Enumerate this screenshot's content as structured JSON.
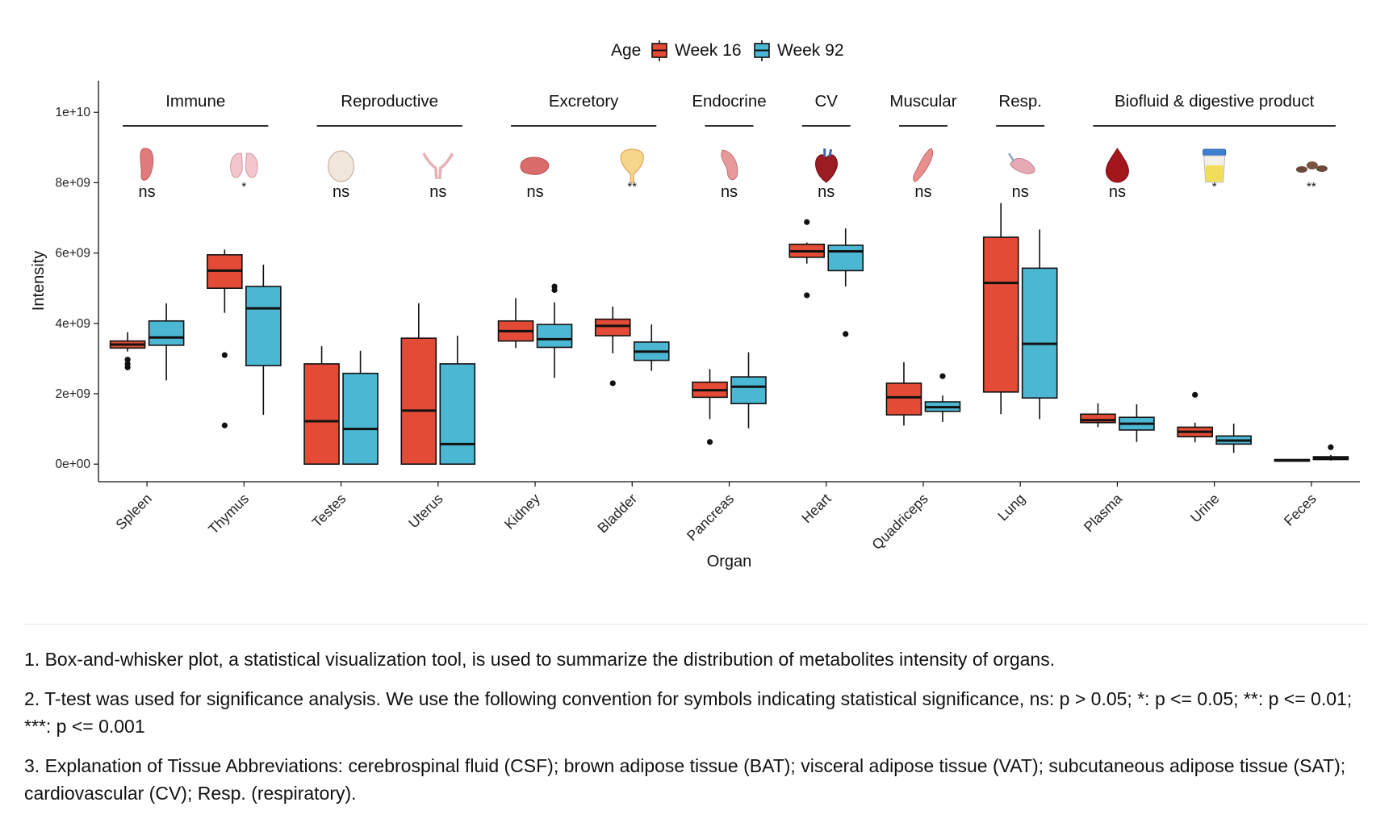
{
  "chart_data": {
    "type": "box",
    "xlabel": "Organ",
    "ylabel": "Intensity",
    "ylim": [
      -500000000,
      10900000000
    ],
    "yticks": [
      {
        "value": 0,
        "label": "0e+00"
      },
      {
        "value": 2000000000,
        "label": "2e+09"
      },
      {
        "value": 4000000000,
        "label": "4e+09"
      },
      {
        "value": 6000000000,
        "label": "6e+09"
      },
      {
        "value": 8000000000,
        "label": "8e+09"
      },
      {
        "value": 10000000000,
        "label": "1e+10"
      }
    ],
    "legend": {
      "title": "Age",
      "position": "top",
      "items": [
        {
          "name": "Week 16",
          "color": "#E34B36"
        },
        {
          "name": "Week 92",
          "color": "#4CB7D3"
        }
      ]
    },
    "groups": [
      {
        "label": "Immune",
        "from": 0,
        "to": 1
      },
      {
        "label": "Reproductive",
        "from": 2,
        "to": 3
      },
      {
        "label": "Excretory",
        "from": 4,
        "to": 5
      },
      {
        "label": "Endocrine",
        "from": 6,
        "to": 6
      },
      {
        "label": "CV",
        "from": 7,
        "to": 7
      },
      {
        "label": "Muscular",
        "from": 8,
        "to": 8
      },
      {
        "label": "Resp.",
        "from": 9,
        "to": 9
      },
      {
        "label": "Biofluid & digestive product",
        "from": 10,
        "to": 12
      }
    ],
    "categories": [
      "Spleen",
      "Thymus",
      "Testes",
      "Uterus",
      "Kidney",
      "Bladder",
      "Pancreas",
      "Heart",
      "Quadriceps",
      "Lung",
      "Plasma",
      "Urine",
      "Feces"
    ],
    "icons": [
      "spleen-icon",
      "thymus-icon",
      "testes-icon",
      "uterus-icon",
      "kidney-icon",
      "bladder-icon",
      "pancreas-icon",
      "heart-icon",
      "quadriceps-icon",
      "lung-icon",
      "blood-drop-icon",
      "urine-cup-icon",
      "feces-icon"
    ],
    "significance": [
      "ns",
      "*",
      "ns",
      "ns",
      "ns",
      "**",
      "ns",
      "ns",
      "ns",
      "ns",
      "ns",
      "*",
      "**"
    ],
    "series": [
      {
        "name": "Week 16",
        "boxes": [
          {
            "min": 3200000000.0,
            "q1": 3300000000.0,
            "median": 3400000000.0,
            "q3": 3500000000.0,
            "max": 3750000000.0,
            "outliers": [
              2750000000.0,
              2850000000.0,
              2970000000.0
            ]
          },
          {
            "min": 4300000000.0,
            "q1": 5000000000.0,
            "median": 5500000000.0,
            "q3": 5950000000.0,
            "max": 6100000000.0,
            "outliers": [
              3100000000.0,
              1100000000.0
            ]
          },
          {
            "min": 0,
            "q1": 0,
            "median": 1220000000.0,
            "q3": 2850000000.0,
            "max": 3350000000.0,
            "outliers": []
          },
          {
            "min": 0,
            "q1": 0,
            "median": 1520000000.0,
            "q3": 3580000000.0,
            "max": 4570000000.0,
            "outliers": []
          },
          {
            "min": 3300000000.0,
            "q1": 3500000000.0,
            "median": 3780000000.0,
            "q3": 4070000000.0,
            "max": 4720000000.0,
            "outliers": []
          },
          {
            "min": 3150000000.0,
            "q1": 3650000000.0,
            "median": 3930000000.0,
            "q3": 4120000000.0,
            "max": 4480000000.0,
            "outliers": [
              2300000000.0
            ]
          },
          {
            "min": 1280000000.0,
            "q1": 1900000000.0,
            "median": 2100000000.0,
            "q3": 2330000000.0,
            "max": 2700000000.0,
            "outliers": [
              630000000.0
            ]
          },
          {
            "min": 5700000000.0,
            "q1": 5880000000.0,
            "median": 6050000000.0,
            "q3": 6250000000.0,
            "max": 6300000000.0,
            "outliers": [
              6880000000.0,
              4800000000.0
            ]
          },
          {
            "min": 1100000000.0,
            "q1": 1400000000.0,
            "median": 1900000000.0,
            "q3": 2300000000.0,
            "max": 2900000000.0,
            "outliers": []
          },
          {
            "min": 1420000000.0,
            "q1": 2050000000.0,
            "median": 5150000000.0,
            "q3": 6450000000.0,
            "max": 7420000000.0,
            "outliers": []
          },
          {
            "min": 1050000000.0,
            "q1": 1180000000.0,
            "median": 1250000000.0,
            "q3": 1420000000.0,
            "max": 1730000000.0,
            "outliers": []
          },
          {
            "min": 620000000.0,
            "q1": 780000000.0,
            "median": 920000000.0,
            "q3": 1050000000.0,
            "max": 1180000000.0,
            "outliers": [
              1970000000.0
            ]
          },
          {
            "min": 90000000.0,
            "q1": 100000000.0,
            "median": 110000000.0,
            "q3": 130000000.0,
            "max": 140000000.0,
            "outliers": []
          }
        ]
      },
      {
        "name": "Week 92",
        "boxes": [
          {
            "min": 2380000000.0,
            "q1": 3380000000.0,
            "median": 3600000000.0,
            "q3": 4070000000.0,
            "max": 4570000000.0,
            "outliers": []
          },
          {
            "min": 1400000000.0,
            "q1": 2800000000.0,
            "median": 4430000000.0,
            "q3": 5050000000.0,
            "max": 5670000000.0,
            "outliers": []
          },
          {
            "min": 0,
            "q1": 0,
            "median": 1000000000.0,
            "q3": 2580000000.0,
            "max": 3220000000.0,
            "outliers": []
          },
          {
            "min": 0,
            "q1": 0,
            "median": 570000000.0,
            "q3": 2850000000.0,
            "max": 3650000000.0,
            "outliers": []
          },
          {
            "min": 2450000000.0,
            "q1": 3320000000.0,
            "median": 3550000000.0,
            "q3": 3970000000.0,
            "max": 4600000000.0,
            "outliers": [
              4950000000.0,
              5050000000.0
            ]
          },
          {
            "min": 2650000000.0,
            "q1": 2950000000.0,
            "median": 3200000000.0,
            "q3": 3470000000.0,
            "max": 3970000000.0,
            "outliers": []
          },
          {
            "min": 1020000000.0,
            "q1": 1720000000.0,
            "median": 2200000000.0,
            "q3": 2480000000.0,
            "max": 3180000000.0,
            "outliers": []
          },
          {
            "min": 5050000000.0,
            "q1": 5500000000.0,
            "median": 6050000000.0,
            "q3": 6220000000.0,
            "max": 6700000000.0,
            "outliers": [
              3700000000.0
            ]
          },
          {
            "min": 1200000000.0,
            "q1": 1500000000.0,
            "median": 1620000000.0,
            "q3": 1770000000.0,
            "max": 1950000000.0,
            "outliers": [
              2500000000.0
            ]
          },
          {
            "min": 1280000000.0,
            "q1": 1880000000.0,
            "median": 3420000000.0,
            "q3": 5570000000.0,
            "max": 6670000000.0,
            "outliers": []
          },
          {
            "min": 630000000.0,
            "q1": 970000000.0,
            "median": 1150000000.0,
            "q3": 1330000000.0,
            "max": 1700000000.0,
            "outliers": []
          },
          {
            "min": 320000000.0,
            "q1": 570000000.0,
            "median": 670000000.0,
            "q3": 800000000.0,
            "max": 1150000000.0,
            "outliers": []
          },
          {
            "min": 100000000.0,
            "q1": 130000000.0,
            "median": 170000000.0,
            "q3": 210000000.0,
            "max": 260000000.0,
            "outliers": [
              480000000.0
            ]
          }
        ]
      }
    ]
  },
  "notes": [
    "1. Box-and-whisker plot, a statistical visualization tool, is used to summarize the distribution of metabolites intensity of organs.",
    "2. T-test was used for significance analysis. We use the following convention for symbols indicating statistical significance, ns: p > 0.05; *: p <= 0.05; **: p <= 0.01; ***: p <= 0.001",
    "3. Explanation of Tissue Abbreviations: cerebrospinal fluid (CSF); brown adipose tissue (BAT); visceral adipose tissue (VAT); subcutaneous adipose tissue (SAT); cardiovascular (CV); Resp. (respiratory)."
  ]
}
